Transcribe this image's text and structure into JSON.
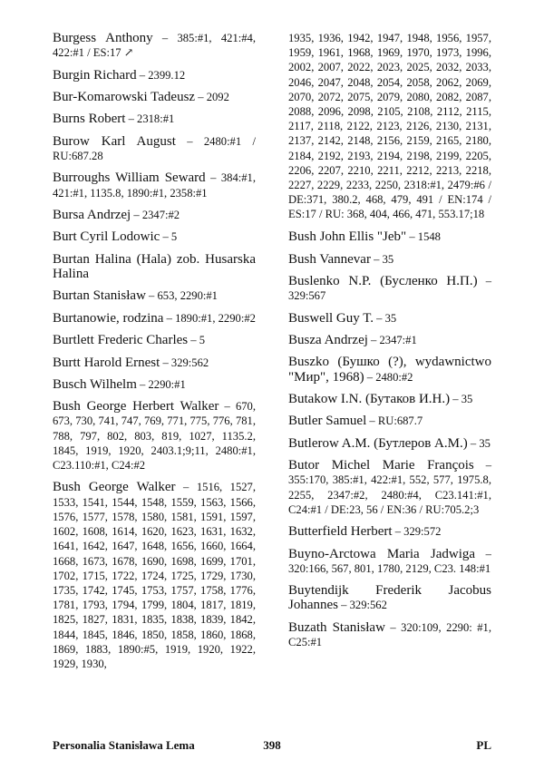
{
  "columns": [
    {
      "entries": [
        {
          "name": "Burgess Anthony",
          "refs": "385:#1, 421:#4, 422:#1 / ES:17 ↗"
        },
        {
          "name": "Burgin Richard",
          "refs": "2399.12"
        },
        {
          "name": "Bur-Komarowski Tadeusz",
          "refs": "2092"
        },
        {
          "name": "Burns Robert",
          "refs": "2318:#1"
        },
        {
          "name": "Burow Karl August",
          "refs": "2480:#1 / RU:687.28"
        },
        {
          "name": "Burroughs William Seward",
          "refs": "384:#1, 421:#1, 1135.8, 1890:#1, 2358:#1"
        },
        {
          "name": "Bursa Andrzej",
          "refs": "2347:#2"
        },
        {
          "name": "Burt Cyril Lodowic",
          "refs": "5"
        },
        {
          "name": "Burtan Halina (Hala) zob. Husarska Halina",
          "refs": ""
        },
        {
          "name": "Burtan Stanisław",
          "refs": "653, 2290:#1"
        },
        {
          "name": "Burtanowie, rodzina",
          "refs": "1890:#1, 2290:#2"
        },
        {
          "name": "Burtlett Frederic Charles",
          "refs": "5"
        },
        {
          "name": "Burtt Harold Ernest",
          "refs": "329:562"
        },
        {
          "name": "Busch Wilhelm",
          "refs": "2290:#1"
        },
        {
          "name": "Bush George Herbert Walker",
          "refs": "670, 673, 730, 741, 747, 769, 771, 775, 776, 781, 788, 797, 802, 803, 819, 1027, 1135.2, 1845, 1919, 1920, 2403.1;9;11, 2480:#1, C23.110:#1, C24:#2"
        },
        {
          "name": "Bush George Walker",
          "refs": "1516, 1527, 1533, 1541, 1544, 1548, 1559, 1563, 1566, 1576, 1577, 1578, 1580, 1581, 1591, 1597, 1602, 1608, 1614, 1620, 1623, 1631, 1632, 1641, 1642, 1647, 1648, 1656, 1660, 1664, 1668, 1673, 1678, 1690, 1698, 1699, 1701, 1702, 1715, 1722, 1724, 1725, 1729, 1730, 1735, 1742, 1745, 1753, 1757, 1758, 1776, 1781, 1793, 1794, 1799, 1804, 1817, 1819, 1825, 1827, 1831, 1835, 1838, 1839, 1842, 1844, 1845, 1846, 1850, 1858, 1860, 1868, 1869, 1883, 1890:#5, 1919, 1920, 1922, 1929, 1930,"
        }
      ]
    },
    {
      "entries": [
        {
          "name": "",
          "refs": "1935, 1936, 1942, 1947, 1948, 1956, 1957, 1959, 1961, 1968, 1969, 1970, 1973, 1996, 2002, 2007, 2022, 2023, 2025, 2032, 2033, 2046, 2047, 2048, 2054, 2058, 2062, 2069, 2070, 2072, 2075, 2079, 2080, 2082, 2087, 2088, 2096, 2098, 2105, 2108, 2112, 2115, 2117, 2118, 2122, 2123, 2126, 2130, 2131, 2137, 2142, 2148, 2156, 2159, 2165, 2180, 2184, 2192, 2193, 2194, 2198, 2199, 2205, 2206, 2207, 2210, 2211, 2212, 2213, 2218, 2227, 2229, 2233, 2250, 2318:#1, 2479:#6 / DE:371, 380.2, 468, 479, 491 / EN:174 / ES:17 / RU: 368, 404, 466, 471, 553.17;18"
        },
        {
          "name": "Bush John Ellis \"Jeb\"",
          "refs": "1548"
        },
        {
          "name": "Bush Vannevar",
          "refs": "35"
        },
        {
          "name": "Buslenko N.P. (Бусленко Н.П.)",
          "refs": "329:567"
        },
        {
          "name": "Buswell Guy T.",
          "refs": "35"
        },
        {
          "name": "Busza Andrzej",
          "refs": "2347:#1"
        },
        {
          "name": "Buszko (Бушко (?), wydawnictwo \"Мир\", 1968)",
          "refs": "2480:#2"
        },
        {
          "name": "Butakow I.N. (Бутаков И.Н.)",
          "refs": "35"
        },
        {
          "name": "Butler Samuel",
          "refs": "RU:687.7"
        },
        {
          "name": "Butlerow A.M. (Бутлеров А.М.)",
          "refs": "35"
        },
        {
          "name": "Butor Michel Marie François",
          "refs": "355:170, 385:#1, 422:#1, 552, 577, 1975.8, 2255, 2347:#2, 2480:#4, C23.141:#1, C24:#1 / DE:23, 56 / EN:36 / RU:705.2;3"
        },
        {
          "name": "Butterfield Herbert",
          "refs": "329:572"
        },
        {
          "name": "Buyno-Arctowa Maria Jadwiga",
          "refs": "320:166, 567, 801, 1780, 2129, C23. 148:#1"
        },
        {
          "name": "Buytendijk Frederik Jacobus Johannes",
          "refs": "329:562"
        },
        {
          "name": "Buzath Stanisław",
          "refs": "320:109, 2290: #1, C25:#1"
        }
      ]
    }
  ],
  "footer": {
    "title": "Personalia Stanisława Lema",
    "page_number": "398",
    "language": "PL"
  }
}
